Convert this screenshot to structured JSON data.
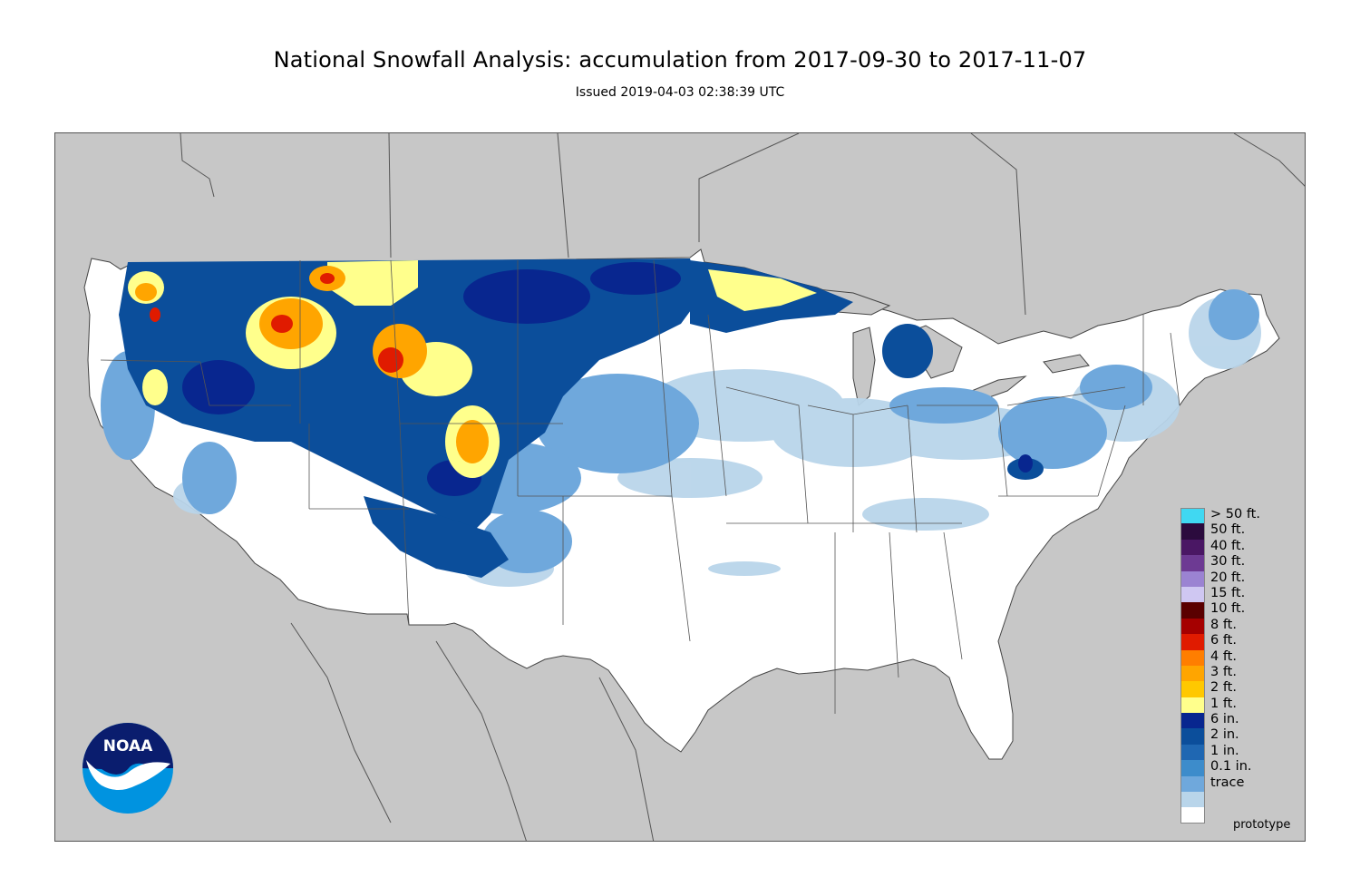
{
  "title": "National Snowfall Analysis: accumulation from 2017-09-30 to 2017-11-07",
  "subtitle": "Issued 2019-04-03 02:38:39 UTC",
  "footer": {
    "note": "prototype"
  },
  "logo": {
    "text": "NOAA",
    "icon": "noaa-logo-icon",
    "colors": {
      "sky": "#0a1d6e",
      "sea": "#0093e0",
      "bird": "#ffffff"
    }
  },
  "map": {
    "region": "Contiguous United States",
    "colors": {
      "background": "#c7c7c7",
      "land": "#ffffff",
      "borders": "#555555"
    }
  },
  "legend": {
    "items": [
      {
        "label": "> 50 ft.",
        "color": "#40d8f2"
      },
      {
        "label": "50 ft.",
        "color": "#2b0b3d"
      },
      {
        "label": "40 ft.",
        "color": "#4a1764"
      },
      {
        "label": "30 ft.",
        "color": "#6d3a93"
      },
      {
        "label": "20 ft.",
        "color": "#9b83d2"
      },
      {
        "label": "15 ft.",
        "color": "#cfc7f2"
      },
      {
        "label": "10 ft.",
        "color": "#5a0000"
      },
      {
        "label": "8 ft.",
        "color": "#a50000"
      },
      {
        "label": "6 ft.",
        "color": "#e01b00"
      },
      {
        "label": "4 ft.",
        "color": "#ff7e00"
      },
      {
        "label": "3 ft.",
        "color": "#ffa500"
      },
      {
        "label": "2 ft.",
        "color": "#ffc800"
      },
      {
        "label": "1 ft.",
        "color": "#ffff8c"
      },
      {
        "label": "6 in.",
        "color": "#08268f"
      },
      {
        "label": "2 in.",
        "color": "#0b4e9b"
      },
      {
        "label": "1 in.",
        "color": "#1f67b2"
      },
      {
        "label": "0.1 in.",
        "color": "#3d8ccb"
      },
      {
        "label": "trace",
        "color": "#6fa8dc"
      },
      {
        "label": "",
        "color": "#b9d5ea"
      },
      {
        "label": "",
        "color": "#ffffff"
      }
    ]
  }
}
